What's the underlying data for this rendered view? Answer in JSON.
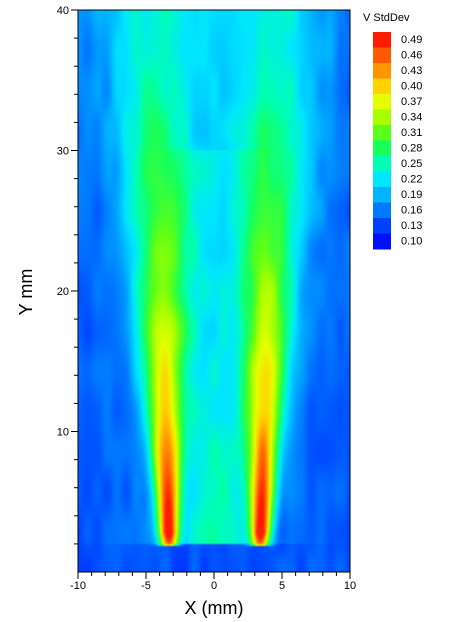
{
  "chart_data": {
    "type": "heatmap",
    "title": "",
    "xlabel": "X (mm)",
    "ylabel": "Y mm",
    "xlim": [
      -10,
      10
    ],
    "ylim": [
      0,
      40
    ],
    "x_ticks": [
      "-10",
      "-5",
      "0",
      "5",
      "10"
    ],
    "x_tick_values": [
      -10,
      -5,
      0,
      5,
      10
    ],
    "y_ticks": [
      "10",
      "20",
      "30",
      "40"
    ],
    "y_tick_values": [
      10,
      20,
      30,
      40
    ],
    "legend": {
      "title": "V StdDev",
      "placement": "top-right",
      "levels": [
        "0.49",
        "0.46",
        "0.43",
        "0.40",
        "0.37",
        "0.34",
        "0.31",
        "0.28",
        "0.25",
        "0.22",
        "0.19",
        "0.16",
        "0.13",
        "0.10"
      ],
      "level_values": [
        0.49,
        0.46,
        0.43,
        0.4,
        0.37,
        0.34,
        0.31,
        0.28,
        0.25,
        0.22,
        0.19,
        0.16,
        0.13,
        0.1
      ],
      "colors": [
        "#ff1a00",
        "#ff5a00",
        "#ff9600",
        "#ffd200",
        "#e6ff00",
        "#a8ff00",
        "#5aff1a",
        "#18ff5a",
        "#00ffb4",
        "#00e6ff",
        "#00b4ff",
        "#0078ff",
        "#0040ff",
        "#0010ff"
      ]
    },
    "field": {
      "background": 0.14,
      "jets": [
        {
          "x": -3.3,
          "peak": 0.5,
          "base_y": 1.8
        },
        {
          "x": 3.4,
          "peak": 0.5,
          "base_y": 1.8
        }
      ],
      "center_floor": {
        "x": 0.0,
        "value": 0.27
      }
    }
  }
}
